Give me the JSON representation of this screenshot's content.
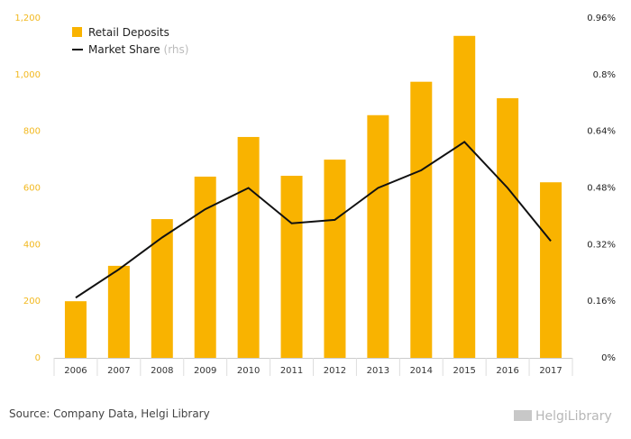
{
  "chart_data": {
    "type": "bar",
    "categories": [
      "2006",
      "2007",
      "2008",
      "2009",
      "2010",
      "2011",
      "2012",
      "2013",
      "2014",
      "2015",
      "2016",
      "2017"
    ],
    "series": [
      {
        "name": "Retail Deposits",
        "type": "bar",
        "axis": "left",
        "color": "#f9b300",
        "values": [
          200,
          325,
          490,
          640,
          780,
          643,
          700,
          857,
          975,
          1137,
          917,
          620
        ]
      },
      {
        "name": "Market Share",
        "name_suffix": "(rhs)",
        "type": "line",
        "axis": "right",
        "color": "#111111",
        "values": [
          0.17,
          0.25,
          0.34,
          0.42,
          0.48,
          0.38,
          0.39,
          0.48,
          0.53,
          0.61,
          0.48,
          0.33
        ]
      }
    ],
    "left_axis": {
      "ylim": [
        0,
        1200
      ],
      "ticks": [
        0,
        200,
        400,
        600,
        800,
        1000,
        1200
      ],
      "tick_labels": [
        "0",
        "200",
        "400",
        "600",
        "800",
        "1,000",
        "1,200"
      ]
    },
    "right_axis": {
      "ylim": [
        0,
        0.96
      ],
      "ticks": [
        0,
        0.16,
        0.32,
        0.48,
        0.64,
        0.8,
        0.96
      ],
      "tick_labels": [
        "0%",
        "0.16%",
        "0.32%",
        "0.48%",
        "0.64%",
        "0.8%",
        "0.96%"
      ]
    },
    "legend": "top-left",
    "grid": false
  },
  "footer": {
    "source": "Source: Company Data, Helgi Library",
    "brand": "HelgiLibrary"
  },
  "colors": {
    "bar": "#f9b300",
    "line": "#111111",
    "left_tick": "#f2b81e"
  }
}
